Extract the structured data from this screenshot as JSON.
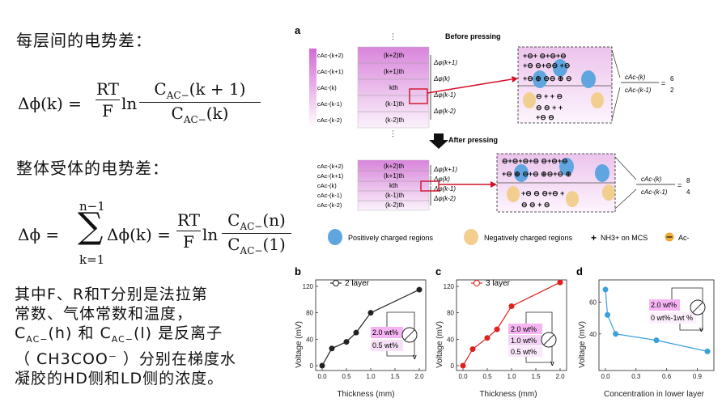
{
  "left": {
    "heading1": "每层间的电势差：",
    "heading2": "整体受体的电势差：",
    "eq1": {
      "lhs": "Δϕ(k) =",
      "frac1_num": "RT",
      "frac1_den": "F",
      "ln": "ln",
      "frac2_num": "C",
      "frac2_num_sub": "AC−",
      "frac2_num_tail": "(k + 1)",
      "frac2_den": "C",
      "frac2_den_sub": "AC−",
      "frac2_den_tail": "(k)"
    },
    "eq2": {
      "lhs": "Δϕ  =",
      "sum_top": "n−1",
      "sum_bot": "k=1",
      "sum_sym": "∑",
      "mid": "Δϕ(k) =",
      "frac1_num": "RT",
      "frac1_den": "F",
      "ln": "ln",
      "num": "C",
      "num_sub": "AC−",
      "num_tail": "(n)",
      "den": "C",
      "den_sub": "AC−",
      "den_tail": "(1)"
    },
    "para": [
      "其中F、R和T分别是法拉第",
      "常数、气体常数和温度，",
      "C",
      "AC−",
      "(h) 和 C",
      "AC−",
      "(l) 是反离子",
      "（ CH3COO⁻ ）分别在梯度水",
      "凝胶的HD侧和LD侧的浓度。"
    ]
  },
  "panel_a": {
    "letter": "a",
    "before_title": "Before pressing",
    "after_title": "After pressing",
    "layers": [
      "(k+2)th",
      "(k+1)th",
      "kth",
      "(k-1)th",
      "(k-2)th"
    ],
    "c_labels": [
      "cAc-(k+2)",
      "cAc-(k+1)",
      "cAc-(k)",
      "cAc-(k-1)",
      "cAc-(k-2)"
    ],
    "phi_labels": [
      "Δφ(k+1)",
      "Δφ(k)",
      "Δφ(k-1)",
      "Δφ(k-2)"
    ],
    "ratio_before": {
      "num": "cAc-(k)",
      "den": "cAc-(k-1)",
      "eq": "=",
      "rnum": "6",
      "rden": "2"
    },
    "ratio_after": {
      "num": "cAc-(k)",
      "den": "cAc-(k-1)",
      "eq": "=",
      "rnum": "8",
      "rden": "4"
    },
    "legend": {
      "pos": "Positively charged regions",
      "neg": "Negatively charged regions",
      "nh3": "NH3+ on MCS",
      "ac": "Ac-"
    },
    "colors": {
      "pos": "#5fa6e0",
      "neg": "#f2cf8f",
      "gradient_top": "#d56ad6",
      "arrow": "#d0102a"
    }
  },
  "charts": {
    "b": {
      "letter": "b",
      "legend": "2 layer",
      "box1": "2.0 wt%",
      "box2": "0.5 wt%",
      "v": "V"
    },
    "c": {
      "letter": "c",
      "legend": "3 layer",
      "box1": "2.0 wt%",
      "box2": "1.0 wt%",
      "box3": "0.5 wt%",
      "v": "V"
    },
    "d": {
      "letter": "d",
      "box1": "2.0 wt%",
      "box2": "0 wt%-1wt %",
      "v": "V"
    }
  },
  "chart_data": [
    {
      "type": "line",
      "xlabel": "Thickness (mm)",
      "ylabel": "Voltage (mV)",
      "xlim": [
        0,
        2
      ],
      "ylim": [
        0,
        120
      ],
      "xticks": [
        "0.0",
        "0.5",
        "1.0",
        "1.5",
        "2.0"
      ],
      "yticks": [
        "0",
        "40",
        "80",
        "120"
      ],
      "series": [
        {
          "name": "2 layer",
          "color": "#222222",
          "x": [
            0.0,
            0.2,
            0.5,
            0.7,
            1.0,
            2.0
          ],
          "y": [
            0,
            26,
            36,
            50,
            80,
            115
          ]
        }
      ]
    },
    {
      "type": "line",
      "xlabel": "Thickness (mm)",
      "ylabel": "Voltage (mV)",
      "xlim": [
        0,
        2
      ],
      "ylim": [
        0,
        120
      ],
      "xticks": [
        "0.0",
        "0.5",
        "1.0",
        "1.5",
        "2.0"
      ],
      "yticks": [
        "0",
        "40",
        "80",
        "120"
      ],
      "series": [
        {
          "name": "3 layer",
          "color": "#e0201c",
          "x": [
            0.0,
            0.2,
            0.5,
            0.7,
            1.0,
            2.0
          ],
          "y": [
            0,
            25,
            42,
            55,
            90,
            126
          ]
        }
      ]
    },
    {
      "type": "line",
      "xlabel": "Concentration in lower layer",
      "ylabel": "Voltage (mV)",
      "xlim": [
        0,
        1
      ],
      "ylim": [
        20,
        70
      ],
      "xticks": [
        "0.0",
        "0.3",
        "0.6",
        "0.9"
      ],
      "yticks": [
        "40",
        "60"
      ],
      "series": [
        {
          "color": "#3a9fdc",
          "x": [
            0.0,
            0.02,
            0.1,
            0.5,
            1.0
          ],
          "y": [
            68,
            52,
            40,
            36,
            29
          ]
        }
      ]
    }
  ]
}
